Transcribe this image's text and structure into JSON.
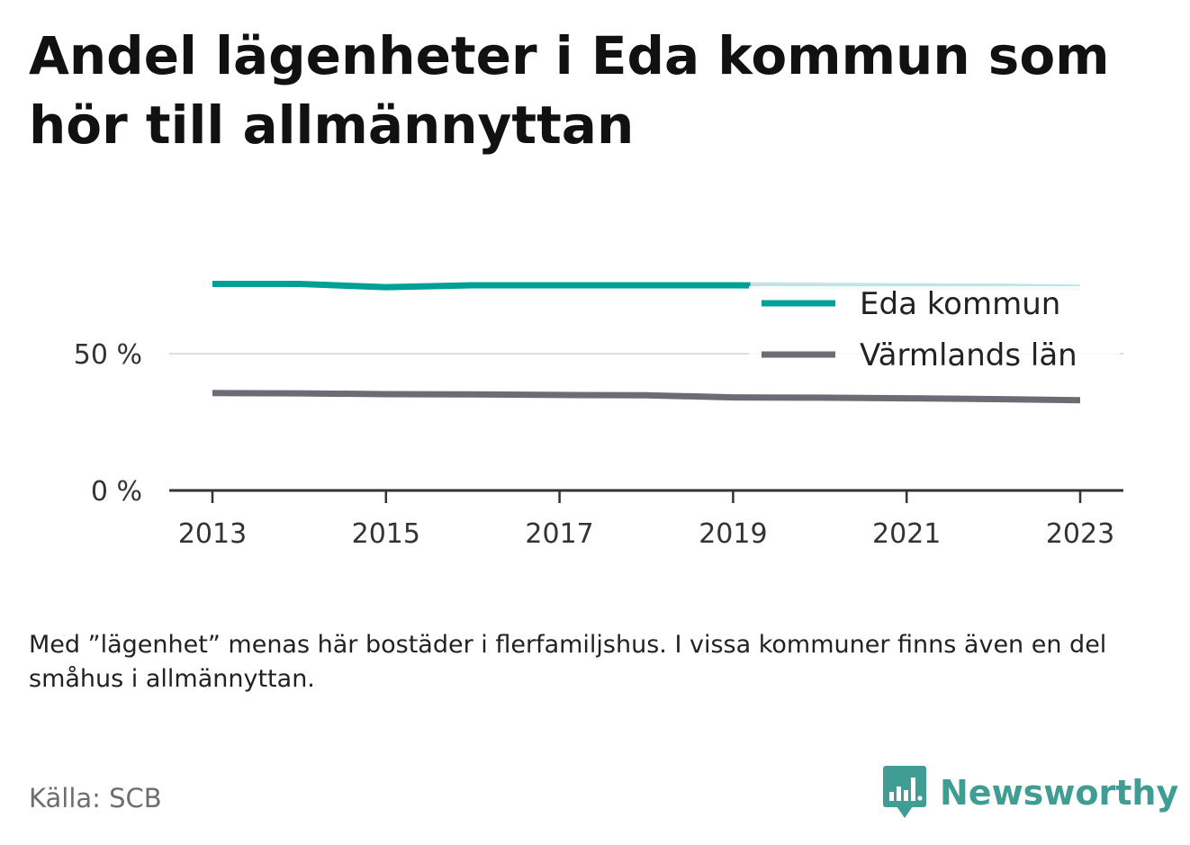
{
  "title": "Andel lägenheter i Eda kommun som hör till allmännyttan",
  "note": "Med ”lägenhet” menas här bostäder i flerfamiljshus. I vissa kommuner finns även en del småhus i allmännyttan.",
  "source": "Källa: SCB",
  "brand": "Newsworthy",
  "colors": {
    "eda": "#00a096",
    "eda_projected": "#bde6e2",
    "lan": "#6d6c74",
    "axis": "#333333",
    "grid": "#dddddd",
    "brand": "#3f9d94"
  },
  "chart_data": {
    "type": "line",
    "x": [
      2013,
      2014,
      2015,
      2016,
      2017,
      2018,
      2019,
      2020,
      2021,
      2022,
      2023
    ],
    "xticks": [
      "2013",
      "2015",
      "2017",
      "2019",
      "2021",
      "2023"
    ],
    "yticks": [
      "0 %",
      "50 %"
    ],
    "ylim": [
      0,
      80
    ],
    "legend_position": "top-right",
    "series": [
      {
        "name": "Eda kommun",
        "values": [
          75.5,
          75.5,
          74.3,
          75.0,
          75.0,
          75.0,
          75.0,
          74.8,
          74.6,
          74.5,
          74.1
        ],
        "solid_until": 2019.2
      },
      {
        "name": "Värmlands län",
        "values": [
          35.6,
          35.5,
          35.2,
          35.1,
          34.9,
          34.8,
          34.0,
          33.9,
          33.7,
          33.4,
          33.0
        ]
      }
    ]
  }
}
